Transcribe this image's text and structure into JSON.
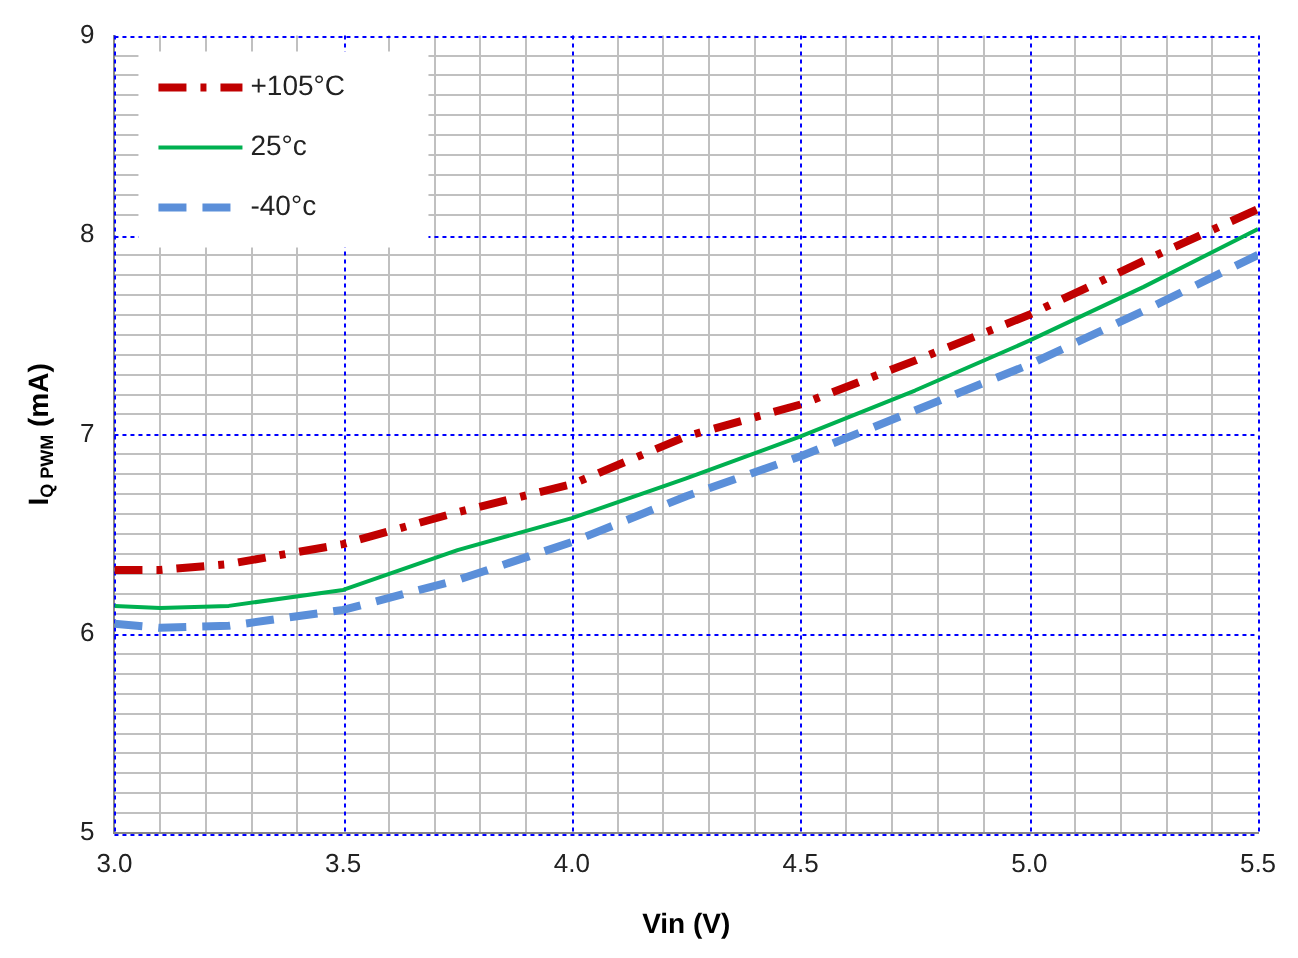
{
  "chart_data": {
    "type": "line",
    "xlabel": "Vin (V)",
    "ylabel": "I$_{Q PWM}$ (mA)",
    "x": [
      3.0,
      3.1,
      3.25,
      3.5,
      3.75,
      4.0,
      4.25,
      4.5,
      4.75,
      5.0,
      5.25,
      5.5
    ],
    "series": [
      {
        "name": "+105°C",
        "color": "#c00000",
        "line_style": "dashdot",
        "values": [
          6.32,
          6.32,
          6.35,
          6.45,
          6.61,
          6.75,
          6.99,
          7.15,
          7.37,
          7.6,
          7.87,
          8.13
        ]
      },
      {
        "name": "25°c",
        "color": "#00b050",
        "line_style": "solid",
        "values": [
          6.14,
          6.13,
          6.14,
          6.22,
          6.42,
          6.58,
          6.78,
          6.99,
          7.22,
          7.47,
          7.74,
          8.03
        ]
      },
      {
        "name": "-40°c",
        "color": "#5b8fd9",
        "line_style": "dashed",
        "values": [
          6.05,
          6.03,
          6.04,
          6.12,
          6.27,
          6.46,
          6.69,
          6.89,
          7.12,
          7.35,
          7.62,
          7.9
        ]
      }
    ],
    "xlim": [
      3.0,
      5.5
    ],
    "xticks": [
      {
        "value": 3.0,
        "label": "3.0"
      },
      {
        "value": 3.1,
        "label": null
      },
      {
        "value": 3.2,
        "label": null
      },
      {
        "value": 3.3,
        "label": null
      },
      {
        "value": 3.4,
        "label": null
      },
      {
        "value": 3.5,
        "label": "3.5"
      },
      {
        "value": 3.6,
        "label": null
      },
      {
        "value": 3.7,
        "label": null
      },
      {
        "value": 3.8,
        "label": null
      },
      {
        "value": 3.9,
        "label": null
      },
      {
        "value": 4.0,
        "label": "4.0"
      },
      {
        "value": 4.1,
        "label": null
      },
      {
        "value": 4.2,
        "label": null
      },
      {
        "value": 4.3,
        "label": null
      },
      {
        "value": 4.4,
        "label": null
      },
      {
        "value": 4.5,
        "label": "4.5"
      },
      {
        "value": 4.6,
        "label": null
      },
      {
        "value": 4.7,
        "label": null
      },
      {
        "value": 4.8,
        "label": null
      },
      {
        "value": 4.9,
        "label": null
      },
      {
        "value": 5.0,
        "label": "5.0"
      },
      {
        "value": 5.1,
        "label": null
      },
      {
        "value": 5.2,
        "label": null
      },
      {
        "value": 5.3,
        "label": null
      },
      {
        "value": 5.4,
        "label": null
      },
      {
        "value": 5.5,
        "label": "5.5"
      }
    ],
    "ylim": [
      5,
      9
    ],
    "yticks": [
      5,
      {
        "value": 5.1,
        "label": null
      },
      {
        "value": 5.2,
        "label": null
      },
      {
        "value": 5.3,
        "label": null
      },
      {
        "value": 5.4,
        "label": null
      },
      {
        "value": 5.5,
        "label": null
      },
      {
        "value": 5.6,
        "label": null
      },
      {
        "value": 5.7,
        "label": null
      },
      {
        "value": 5.8,
        "label": null
      },
      {
        "value": 5.9,
        "label": null
      },
      6,
      {
        "value": 6.1,
        "label": null
      },
      {
        "value": 6.2,
        "label": null
      },
      {
        "value": 6.3,
        "label": null
      },
      {
        "value": 6.4,
        "label": null
      },
      {
        "value": 6.5,
        "label": null
      },
      {
        "value": 6.6,
        "label": null
      },
      {
        "value": 6.7,
        "label": null
      },
      {
        "value": 6.8,
        "label": null
      },
      {
        "value": 6.9,
        "label": null
      },
      7,
      {
        "value": 7.1,
        "label": null
      },
      {
        "value": 7.2,
        "label": null
      },
      {
        "value": 7.3,
        "label": null
      },
      {
        "value": 7.4,
        "label": null
      },
      {
        "value": 7.5,
        "label": null
      },
      {
        "value": 7.6,
        "label": null
      },
      {
        "value": 7.7,
        "label": null
      },
      {
        "value": 7.8,
        "label": null
      },
      {
        "value": 7.9,
        "label": null
      },
      8,
      {
        "value": 8.1,
        "label": null
      },
      {
        "value": 8.2,
        "label": null
      },
      {
        "value": 8.3,
        "label": null
      },
      {
        "value": 8.4,
        "label": null
      },
      {
        "value": 8.5,
        "label": null
      },
      {
        "value": 8.6,
        "label": null
      },
      {
        "value": 8.7,
        "label": null
      },
      {
        "value": 8.8,
        "label": null
      },
      {
        "value": 8.9,
        "label": null
      },
      9
    ],
    "grid": true,
    "legend": "top left",
    "marker": "none"
  }
}
